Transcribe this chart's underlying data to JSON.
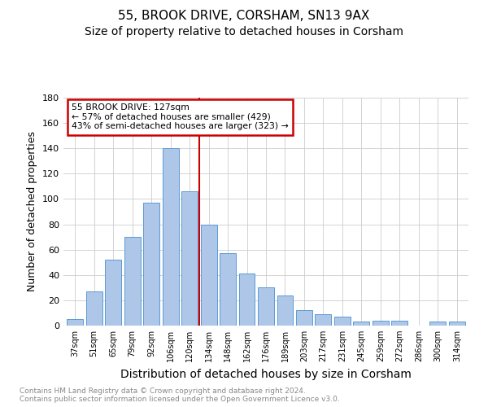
{
  "title": "55, BROOK DRIVE, CORSHAM, SN13 9AX",
  "subtitle": "Size of property relative to detached houses in Corsham",
  "xlabel": "Distribution of detached houses by size in Corsham",
  "ylabel": "Number of detached properties",
  "categories": [
    "37sqm",
    "51sqm",
    "65sqm",
    "79sqm",
    "92sqm",
    "106sqm",
    "120sqm",
    "134sqm",
    "148sqm",
    "162sqm",
    "176sqm",
    "189sqm",
    "203sqm",
    "217sqm",
    "231sqm",
    "245sqm",
    "259sqm",
    "272sqm",
    "286sqm",
    "300sqm",
    "314sqm"
  ],
  "values": [
    5,
    27,
    52,
    70,
    97,
    140,
    106,
    80,
    57,
    41,
    30,
    24,
    12,
    9,
    7,
    3,
    4,
    4,
    0,
    3,
    3
  ],
  "bar_color": "#aec6e8",
  "bar_edge_color": "#5b9bd5",
  "vline_x": 6.5,
  "vline_color": "#cc0000",
  "annotation_text": "55 BROOK DRIVE: 127sqm\n← 57% of detached houses are smaller (429)\n43% of semi-detached houses are larger (323) →",
  "annotation_box_color": "#ffffff",
  "annotation_box_edge_color": "#cc0000",
  "ylim": [
    0,
    180
  ],
  "yticks": [
    0,
    20,
    40,
    60,
    80,
    100,
    120,
    140,
    160,
    180
  ],
  "background_color": "#ffffff",
  "grid_color": "#cccccc",
  "footer_text": "Contains HM Land Registry data © Crown copyright and database right 2024.\nContains public sector information licensed under the Open Government Licence v3.0.",
  "title_fontsize": 11,
  "subtitle_fontsize": 10,
  "xlabel_fontsize": 10,
  "ylabel_fontsize": 9
}
